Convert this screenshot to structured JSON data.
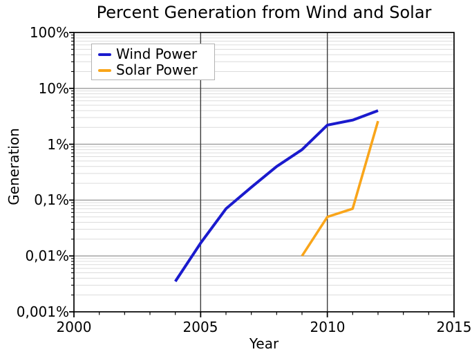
{
  "figure": {
    "background": "#ffffff"
  },
  "chart_data": {
    "type": "line",
    "title": "Percent Generation from Wind and Solar",
    "xlabel": "Year",
    "ylabel": "Generation",
    "x_range": [
      2000,
      2015
    ],
    "y_scale": "log",
    "y_range": [
      0.001,
      100
    ],
    "y_unit": "%",
    "grid": {
      "minor_color": "#dcdcdc",
      "major_h_color": "#9b9b9b",
      "major_v_color": "#3c3c3c",
      "frame_color": "#000000",
      "vertical_major_years": [
        2005,
        2010
      ],
      "horizontal_major_values": [
        10,
        1,
        0.1,
        0.01
      ]
    },
    "x_ticks": [
      {
        "value": 2000,
        "label": "2000"
      },
      {
        "value": 2005,
        "label": "2005"
      },
      {
        "value": 2010,
        "label": "2010"
      },
      {
        "value": 2015,
        "label": "2015"
      }
    ],
    "y_ticks": [
      {
        "value": 100,
        "label": "100%"
      },
      {
        "value": 10,
        "label": "10%"
      },
      {
        "value": 1,
        "label": "1%"
      },
      {
        "value": 0.1,
        "label": "0,1%"
      },
      {
        "value": 0.01,
        "label": "0,01%"
      },
      {
        "value": 0.001,
        "label": "0,001%"
      }
    ],
    "legend": {
      "position": "upper-left",
      "entries": [
        "Wind Power",
        "Solar Power"
      ]
    },
    "series": [
      {
        "name": "Wind Power",
        "color": "#1a1acd",
        "line_width": 4,
        "points": [
          [
            2004,
            0.0035
          ],
          [
            2005,
            0.017
          ],
          [
            2006,
            0.07
          ],
          [
            2007,
            0.17
          ],
          [
            2008,
            0.4
          ],
          [
            2009,
            0.8
          ],
          [
            2010,
            2.2
          ],
          [
            2011,
            2.7
          ],
          [
            2012,
            4.0
          ]
        ]
      },
      {
        "name": "Solar Power",
        "color": "#f9a51a",
        "line_width": 3.6,
        "points": [
          [
            2009,
            0.01
          ],
          [
            2010,
            0.05
          ],
          [
            2011,
            0.07
          ],
          [
            2012,
            2.6
          ]
        ]
      }
    ]
  }
}
